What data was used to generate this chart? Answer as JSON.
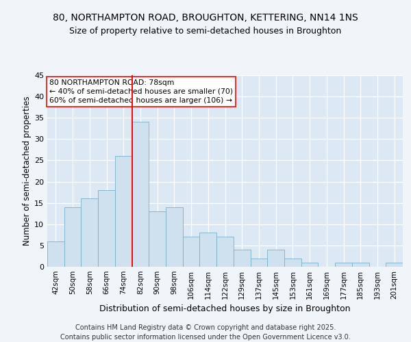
{
  "title1": "80, NORTHAMPTON ROAD, BROUGHTON, KETTERING, NN14 1NS",
  "title2": "Size of property relative to semi-detached houses in Broughton",
  "xlabel": "Distribution of semi-detached houses by size in Broughton",
  "ylabel": "Number of semi-detached properties",
  "footer": "Contains HM Land Registry data © Crown copyright and database right 2025.\nContains public sector information licensed under the Open Government Licence v3.0.",
  "bin_labels": [
    "42sqm",
    "50sqm",
    "58sqm",
    "66sqm",
    "74sqm",
    "82sqm",
    "90sqm",
    "98sqm",
    "106sqm",
    "114sqm",
    "122sqm",
    "129sqm",
    "137sqm",
    "145sqm",
    "153sqm",
    "161sqm",
    "169sqm",
    "177sqm",
    "185sqm",
    "193sqm",
    "201sqm"
  ],
  "bar_values": [
    6,
    14,
    16,
    18,
    26,
    34,
    13,
    14,
    7,
    8,
    7,
    4,
    2,
    4,
    2,
    1,
    0,
    1,
    1,
    0,
    1
  ],
  "bar_color": "#cfe0ef",
  "bar_edgecolor": "#7aafc8",
  "vline_x": 4.5,
  "vline_color": "red",
  "annotation_title": "80 NORTHAMPTON ROAD: 78sqm",
  "annotation_line1": "← 40% of semi-detached houses are smaller (70)",
  "annotation_line2": "60% of semi-detached houses are larger (106) →",
  "annotation_box_facecolor": "white",
  "annotation_box_edgecolor": "red",
  "ylim": [
    0,
    45
  ],
  "yticks": [
    0,
    5,
    10,
    15,
    20,
    25,
    30,
    35,
    40,
    45
  ],
  "bg_color": "#eaf1f8",
  "plot_bg_color": "#dce9f4",
  "fig_bg_color": "#f0f5fa",
  "title1_fontsize": 10,
  "title2_fontsize": 9,
  "xlabel_fontsize": 9,
  "ylabel_fontsize": 8.5,
  "tick_fontsize": 8,
  "xtick_fontsize": 7.5,
  "footer_fontsize": 7,
  "annotation_fontsize": 7.8
}
